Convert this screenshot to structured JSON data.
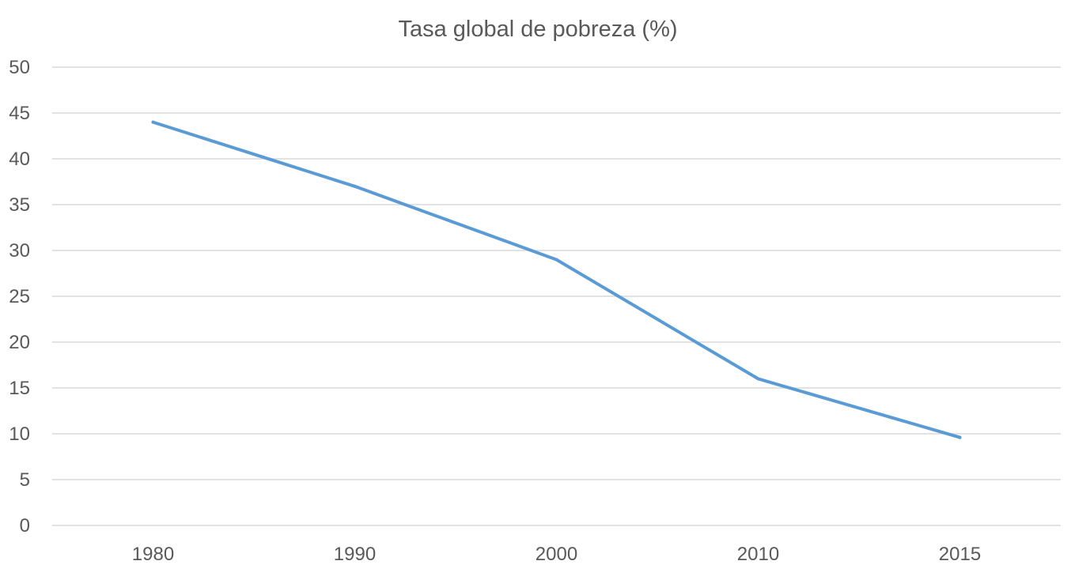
{
  "chart_data": {
    "type": "line",
    "title": "Tasa global de pobreza (%)",
    "xlabel": "",
    "ylabel": "",
    "categories": [
      "1980",
      "1990",
      "2000",
      "2010",
      "2015"
    ],
    "series": [
      {
        "name": "Tasa global de pobreza (%)",
        "values": [
          44,
          37,
          29,
          16,
          9.6
        ],
        "color": "#5b9bd5"
      }
    ],
    "ylim": [
      0,
      50
    ],
    "yticks": [
      "0",
      "5",
      "10",
      "15",
      "20",
      "25",
      "30",
      "35",
      "40",
      "45",
      "50"
    ],
    "grid": true,
    "legend": "none"
  }
}
